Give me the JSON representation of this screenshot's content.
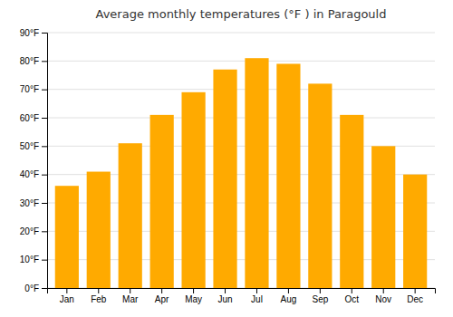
{
  "chart_data": {
    "type": "bar",
    "title": "Average monthly temperatures (°F ) in Paragould",
    "categories": [
      "Jan",
      "Feb",
      "Mar",
      "Apr",
      "May",
      "Jun",
      "Jul",
      "Aug",
      "Sep",
      "Oct",
      "Nov",
      "Dec"
    ],
    "values": [
      36,
      41,
      51,
      61,
      69,
      77,
      81,
      79,
      72,
      61,
      50,
      40
    ],
    "color": "#FFAA00",
    "ylim": [
      0,
      90
    ],
    "yticks": [
      {
        "value": 0,
        "label": "0°F"
      },
      {
        "value": 10,
        "label": "10°F"
      },
      {
        "value": 20,
        "label": "20°F"
      },
      {
        "value": 30,
        "label": "30°F"
      },
      {
        "value": 40,
        "label": "40°F"
      },
      {
        "value": 50,
        "label": "50°F"
      },
      {
        "value": 60,
        "label": "60°F"
      },
      {
        "value": 70,
        "label": "70°F"
      },
      {
        "value": 80,
        "label": "80°F"
      },
      {
        "value": 90,
        "label": "90°F"
      }
    ],
    "grid": true
  }
}
